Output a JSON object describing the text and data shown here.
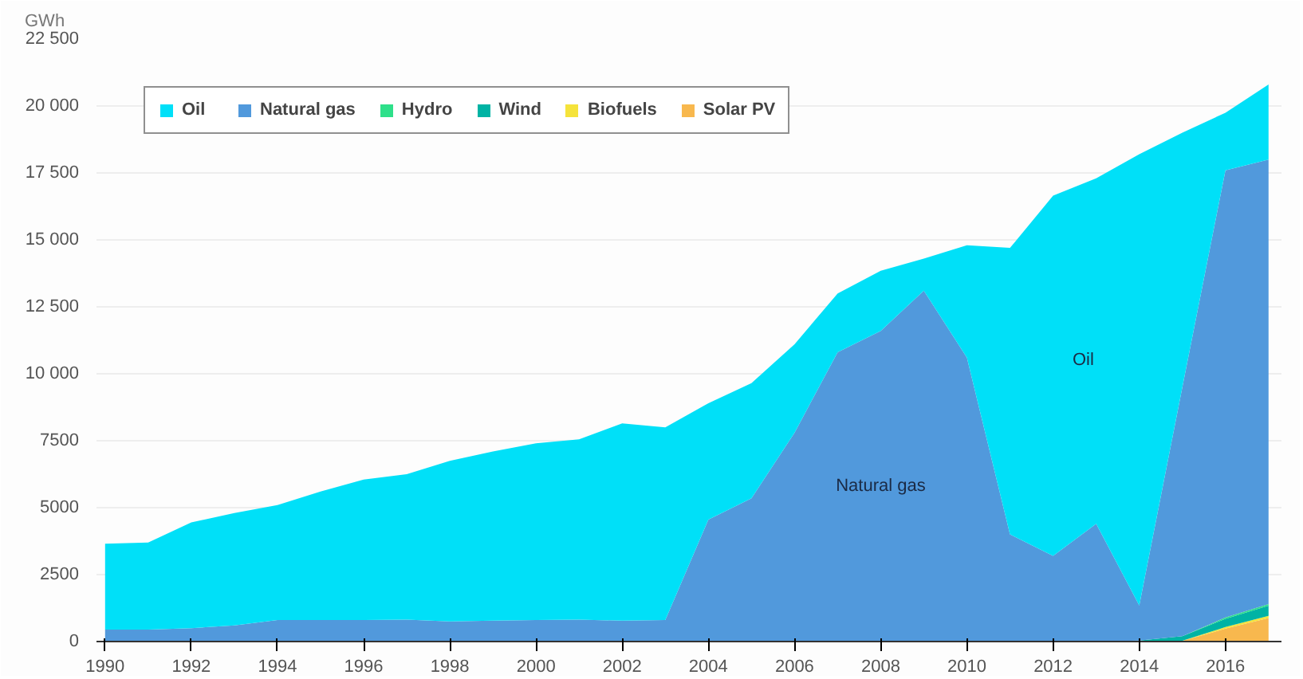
{
  "chart_data": {
    "type": "area",
    "stacked": true,
    "ylabel": "GWh",
    "x": [
      1990,
      1991,
      1992,
      1993,
      1994,
      1995,
      1996,
      1997,
      1998,
      1999,
      2000,
      2001,
      2002,
      2003,
      2004,
      2005,
      2006,
      2007,
      2008,
      2009,
      2010,
      2011,
      2012,
      2013,
      2014,
      2015,
      2016,
      2017
    ],
    "series": [
      {
        "name": "Solar PV",
        "color": "#f8b84e",
        "values": [
          0,
          0,
          0,
          0,
          0,
          0,
          0,
          0,
          0,
          0,
          0,
          0,
          0,
          0,
          0,
          0,
          0,
          0,
          0,
          0,
          0,
          0,
          0,
          0,
          0,
          30,
          480,
          880
        ]
      },
      {
        "name": "Biofuels",
        "color": "#f5e33b",
        "values": [
          0,
          0,
          0,
          0,
          0,
          0,
          0,
          0,
          0,
          0,
          0,
          0,
          0,
          0,
          0,
          0,
          0,
          0,
          0,
          0,
          0,
          0,
          0,
          0,
          0,
          0,
          60,
          80
        ]
      },
      {
        "name": "Wind",
        "color": "#00b3a4",
        "values": [
          0,
          0,
          0,
          0,
          0,
          0,
          0,
          0,
          0,
          0,
          0,
          0,
          0,
          0,
          0,
          0,
          0,
          0,
          0,
          0,
          0,
          0,
          0,
          0,
          40,
          170,
          310,
          380
        ]
      },
      {
        "name": "Hydro",
        "color": "#2ee08a",
        "values": [
          0,
          0,
          0,
          0,
          0,
          0,
          0,
          0,
          0,
          0,
          0,
          0,
          0,
          0,
          0,
          0,
          0,
          0,
          0,
          0,
          0,
          0,
          0,
          0,
          0,
          0,
          50,
          60
        ]
      },
      {
        "name": "Natural gas",
        "color": "#5199dc",
        "values": [
          450,
          450,
          500,
          600,
          800,
          800,
          800,
          820,
          750,
          780,
          800,
          820,
          780,
          800,
          4550,
          5350,
          7800,
          10800,
          11600,
          13100,
          10600,
          4000,
          3200,
          4400,
          1310,
          9300,
          16700,
          16600
        ]
      },
      {
        "name": "Oil",
        "color": "#00e0f8",
        "values": [
          3200,
          3250,
          3950,
          4200,
          4300,
          4800,
          5250,
          5430,
          6000,
          6320,
          6600,
          6730,
          7370,
          7200,
          4350,
          4300,
          3300,
          2200,
          2250,
          1200,
          4200,
          10700,
          13450,
          12900,
          16850,
          9500,
          2150,
          2800
        ]
      }
    ],
    "xlim": [
      1989.8,
      2017.3
    ],
    "ylim": [
      0,
      22500
    ],
    "xticks": [
      1990,
      1992,
      1994,
      1996,
      1998,
      2000,
      2002,
      2004,
      2006,
      2008,
      2010,
      2012,
      2014,
      2016
    ],
    "yticks": [
      0,
      {
        "value": 2500,
        "label": "2500"
      },
      {
        "value": 5000,
        "label": "5000"
      },
      {
        "value": 7500,
        "label": "7500"
      },
      {
        "value": 10000,
        "label": "10 000"
      },
      {
        "value": 12500,
        "label": "12 500"
      },
      {
        "value": 15000,
        "label": "15 000"
      },
      {
        "value": 17500,
        "label": "17 500"
      },
      {
        "value": 20000,
        "label": "20 000"
      },
      {
        "value": 22500,
        "label": "22 500"
      }
    ],
    "grid": "y",
    "legend": "top left",
    "annotations": [
      "Oil",
      "Natural gas"
    ]
  }
}
